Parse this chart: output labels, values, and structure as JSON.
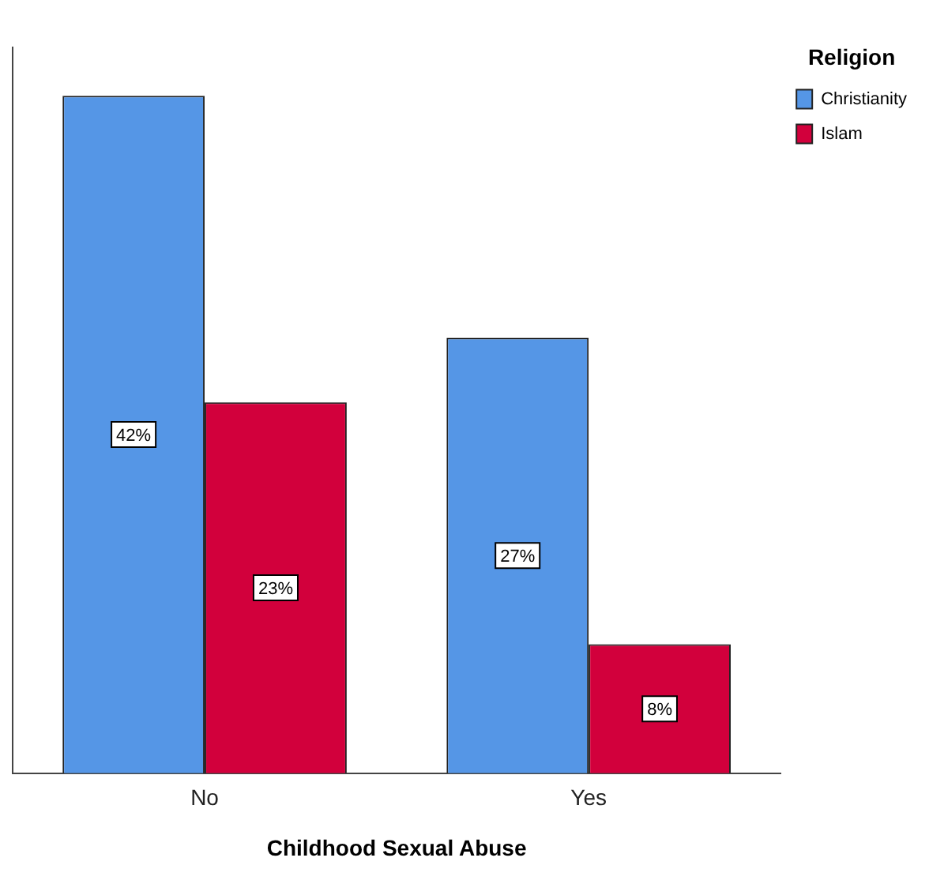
{
  "chart_data": {
    "type": "bar",
    "xlabel": "Childhood Sexual Abuse",
    "legend_title": "Religion",
    "categories": [
      "No",
      "Yes"
    ],
    "series": [
      {
        "name": "Christianity",
        "color": "#5596e6",
        "values": [
          42,
          27
        ],
        "value_labels": [
          "42%",
          "27%"
        ]
      },
      {
        "name": "Islam",
        "color": "#d2003c",
        "values": [
          23,
          8
        ],
        "value_labels": [
          "23%",
          "8%"
        ]
      }
    ],
    "tick_labels": "x",
    "legend": "top right"
  }
}
